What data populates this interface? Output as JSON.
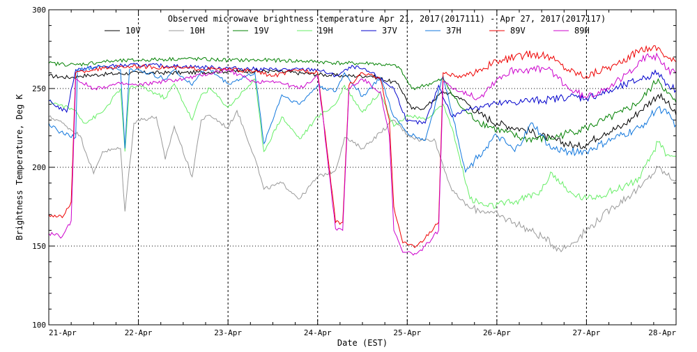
{
  "chart_data": {
    "type": "line",
    "title": "Observed microwave brightness temperature Apr 21, 2017(2017111) - Apr 27, 2017(2017117)",
    "xlabel": "Date (EST)",
    "ylabel": "Brightness Temperature, Deg K",
    "xlim": [
      0,
      7
    ],
    "ylim": [
      100,
      300
    ],
    "yticks": [
      100,
      150,
      200,
      250,
      300
    ],
    "xticks": [
      {
        "value": 0,
        "label": "21-Apr"
      },
      {
        "value": 1,
        "label": "22-Apr"
      },
      {
        "value": 2,
        "label": "23-Apr"
      },
      {
        "value": 3,
        "label": "24-Apr"
      },
      {
        "value": 4,
        "label": "25-Apr"
      },
      {
        "value": 5,
        "label": "26-Apr"
      },
      {
        "value": 6,
        "label": "27-Apr"
      },
      {
        "value": 7,
        "label": "28-Apr"
      }
    ],
    "grid": true,
    "legend_position": "top",
    "series": [
      {
        "name": "10V",
        "color": "#000000",
        "x": [
          0,
          0.25,
          0.35,
          0.6,
          1.0,
          1.5,
          2.0,
          2.5,
          3.0,
          3.3,
          3.6,
          3.9,
          4.05,
          4.2,
          4.4,
          4.6,
          4.8,
          5.0,
          5.3,
          5.6,
          5.9,
          6.0,
          6.2,
          6.4,
          6.6,
          6.8,
          6.9,
          7.0
        ],
        "values": [
          258,
          257,
          258,
          259,
          260,
          260,
          261,
          261,
          259,
          258,
          258,
          253,
          237,
          238,
          248,
          244,
          234,
          228,
          224,
          218,
          213,
          215,
          222,
          226,
          236,
          246,
          241,
          233
        ]
      },
      {
        "name": "10H",
        "color": "#999999",
        "x": [
          0,
          0.1,
          0.2,
          0.35,
          0.5,
          0.6,
          0.8,
          0.85,
          0.95,
          1.0,
          1.2,
          1.3,
          1.4,
          1.6,
          1.7,
          1.8,
          2.0,
          2.1,
          2.3,
          2.4,
          2.6,
          2.8,
          3.0,
          3.2,
          3.3,
          3.5,
          3.7,
          3.85,
          4.0,
          4.15,
          4.3,
          4.5,
          4.7,
          4.9,
          5.2,
          5.5,
          5.7,
          5.8,
          6.0,
          6.3,
          6.6,
          6.8,
          6.9,
          7.0
        ],
        "values": [
          232,
          230,
          226,
          220,
          196,
          210,
          212,
          172,
          228,
          230,
          232,
          205,
          226,
          194,
          230,
          233,
          225,
          236,
          206,
          186,
          190,
          180,
          194,
          198,
          219,
          212,
          222,
          230,
          221,
          217,
          218,
          185,
          174,
          172,
          165,
          156,
          148,
          150,
          160,
          175,
          187,
          200,
          195,
          192
        ]
      },
      {
        "name": "19V",
        "color": "#008000",
        "x": [
          0,
          0.3,
          0.6,
          1.0,
          1.5,
          2.0,
          2.5,
          3.0,
          3.3,
          3.6,
          3.9,
          4.05,
          4.2,
          4.4,
          4.6,
          4.8,
          5.0,
          5.3,
          5.6,
          5.8,
          6.0,
          6.2,
          6.4,
          6.6,
          6.8,
          6.9,
          7.0
        ],
        "values": [
          266,
          265,
          267,
          268,
          269,
          268,
          268,
          267,
          266,
          266,
          264,
          250,
          252,
          256,
          238,
          229,
          224,
          218,
          218,
          222,
          225,
          230,
          235,
          242,
          256,
          247,
          241
        ]
      },
      {
        "name": "19H",
        "color": "#66ee66",
        "x": [
          0,
          0.1,
          0.3,
          0.4,
          0.6,
          0.8,
          0.85,
          0.9,
          1.0,
          1.3,
          1.4,
          1.6,
          1.7,
          1.8,
          2.0,
          2.3,
          2.4,
          2.6,
          2.8,
          3.0,
          3.2,
          3.3,
          3.5,
          3.7,
          3.85,
          4.0,
          4.2,
          4.4,
          4.5,
          4.7,
          4.9,
          5.2,
          5.5,
          5.6,
          5.8,
          6.0,
          6.3,
          6.6,
          6.8,
          6.9,
          7.0
        ],
        "values": [
          242,
          240,
          236,
          228,
          235,
          250,
          210,
          250,
          252,
          244,
          253,
          230,
          246,
          250,
          238,
          256,
          210,
          232,
          218,
          232,
          240,
          252,
          235,
          248,
          226,
          233,
          230,
          240,
          225,
          180,
          175,
          178,
          185,
          197,
          184,
          180,
          185,
          193,
          216,
          208,
          207
        ]
      },
      {
        "name": "37V",
        "color": "#0000cc",
        "x": [
          0,
          0.2,
          0.3,
          0.6,
          1.0,
          1.5,
          2.0,
          2.5,
          3.0,
          3.2,
          3.4,
          3.6,
          3.85,
          4.0,
          4.2,
          4.35,
          4.5,
          4.7,
          5.0,
          5.3,
          5.6,
          5.8,
          6.0,
          6.3,
          6.6,
          6.8,
          6.9,
          7.0
        ],
        "values": [
          242,
          235,
          262,
          264,
          265,
          264,
          263,
          262,
          262,
          258,
          264,
          260,
          250,
          229,
          228,
          252,
          232,
          238,
          240,
          242,
          243,
          245,
          244,
          249,
          256,
          260,
          253,
          249
        ]
      },
      {
        "name": "37H",
        "color": "#1177dd",
        "x": [
          0,
          0.1,
          0.3,
          0.32,
          0.6,
          0.8,
          0.85,
          0.9,
          1.0,
          1.3,
          1.4,
          1.6,
          1.7,
          1.8,
          2.0,
          2.3,
          2.4,
          2.6,
          2.8,
          3.0,
          3.2,
          3.3,
          3.5,
          3.7,
          3.85,
          4.0,
          4.2,
          4.4,
          4.5,
          4.65,
          4.8,
          5.0,
          5.2,
          5.4,
          5.5,
          5.6,
          5.8,
          6.0,
          6.3,
          6.6,
          6.8,
          6.9,
          7.0
        ],
        "values": [
          228,
          223,
          219,
          262,
          264,
          262,
          212,
          262,
          262,
          256,
          262,
          252,
          261,
          262,
          253,
          260,
          215,
          246,
          240,
          252,
          248,
          260,
          245,
          257,
          232,
          222,
          217,
          258,
          235,
          197,
          208,
          220,
          210,
          228,
          220,
          212,
          210,
          210,
          218,
          225,
          238,
          234,
          227
        ]
      },
      {
        "name": "89V",
        "color": "#ee0000",
        "x": [
          0,
          0.15,
          0.25,
          0.3,
          0.5,
          0.8,
          1.0,
          1.5,
          2.0,
          2.3,
          2.5,
          2.8,
          3.0,
          3.05,
          3.2,
          3.28,
          3.35,
          3.5,
          3.7,
          3.8,
          3.85,
          3.95,
          4.1,
          4.2,
          4.35,
          4.4,
          4.6,
          4.8,
          5.0,
          5.2,
          5.4,
          5.6,
          5.8,
          6.0,
          6.2,
          6.4,
          6.6,
          6.7,
          6.8,
          6.9,
          7.0
        ],
        "values": [
          170,
          168,
          178,
          260,
          262,
          264,
          264,
          263,
          262,
          261,
          258,
          262,
          260,
          238,
          165,
          165,
          252,
          260,
          256,
          230,
          175,
          152,
          150,
          155,
          165,
          260,
          257,
          262,
          267,
          270,
          272,
          270,
          262,
          258,
          263,
          266,
          275,
          276,
          276,
          270,
          267
        ]
      },
      {
        "name": "89H",
        "color": "#cc00cc",
        "x": [
          0,
          0.15,
          0.25,
          0.3,
          0.5,
          0.8,
          1.0,
          1.2,
          1.5,
          2.0,
          2.3,
          2.5,
          2.8,
          3.0,
          3.05,
          3.2,
          3.28,
          3.35,
          3.5,
          3.7,
          3.8,
          3.85,
          3.95,
          4.1,
          4.2,
          4.35,
          4.4,
          4.6,
          4.8,
          5.0,
          5.2,
          5.4,
          5.6,
          5.8,
          6.0,
          6.2,
          6.4,
          6.6,
          6.7,
          6.8,
          6.9,
          7.0
        ],
        "values": [
          158,
          156,
          166,
          256,
          250,
          253,
          252,
          254,
          256,
          262,
          254,
          255,
          250,
          258,
          236,
          161,
          160,
          250,
          256,
          248,
          220,
          160,
          146,
          145,
          150,
          160,
          254,
          248,
          244,
          256,
          262,
          262,
          262,
          250,
          244,
          250,
          256,
          268,
          270,
          270,
          262,
          260
        ]
      }
    ]
  }
}
